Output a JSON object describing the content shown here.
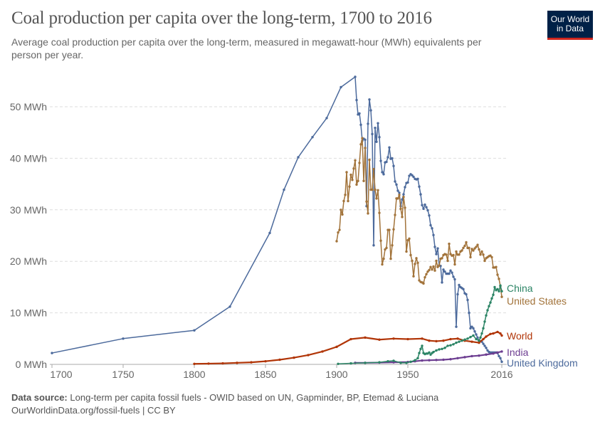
{
  "header": {
    "title": "Coal production per capita over the long-term, 1700 to 2016",
    "subtitle": "Average coal production per capita over the long-term, measured in megawatt-hour (MWh) equivalents per person per year.",
    "logo": [
      "Our World",
      "in Data"
    ]
  },
  "footer": {
    "source_label": "Data source:",
    "source_text": "Long-term per capita fossil fuels - OWID based on UN, Gapminder, BP, Etemad & Luciana",
    "url_line": "OurWorldinData.org/fossil-fuels | CC BY"
  },
  "colors": {
    "brand": "#002147",
    "brand_accent": "#ce261e"
  },
  "chart_data": {
    "type": "line",
    "title": "Coal production per capita over the long-term, 1700 to 2016",
    "xlim": [
      1700,
      2016
    ],
    "ylim": [
      0,
      55
    ],
    "x_ticks": [
      "1700",
      "1750",
      "1800",
      "1850",
      "1900",
      "1950",
      "2016"
    ],
    "x_tick_values": [
      1700,
      1750,
      1800,
      1850,
      1900,
      1950,
      2016
    ],
    "y_ticks": [
      "0 MWh",
      "10 MWh",
      "20 MWh",
      "30 MWh",
      "40 MWh",
      "50 MWh"
    ],
    "y_tick_values": [
      0,
      10,
      20,
      30,
      40,
      50
    ],
    "grid": "horizontal dashed",
    "legend": "inline labels at right end of lines",
    "series": [
      {
        "name": "United Kingdom",
        "color": "#4c6a9c",
        "points": [
          [
            1700,
            2.2
          ],
          [
            1750,
            5.0
          ],
          [
            1800,
            6.6
          ],
          [
            1825,
            11.2
          ],
          [
            1853,
            25.5
          ],
          [
            1863,
            33.9
          ],
          [
            1873,
            40.2
          ],
          [
            1883,
            44.1
          ],
          [
            1893,
            47.8
          ],
          [
            1903,
            53.8
          ],
          [
            1913,
            55.8
          ],
          [
            1914,
            51.3
          ],
          [
            1915,
            48.5
          ],
          [
            1916,
            48.7
          ],
          [
            1917,
            46.5
          ],
          [
            1918,
            43.4
          ],
          [
            1919,
            43.8
          ],
          [
            1920,
            43.6
          ],
          [
            1921,
            30.7
          ],
          [
            1922,
            46.7
          ],
          [
            1923,
            51.4
          ],
          [
            1924,
            49.3
          ],
          [
            1925,
            44.7
          ],
          [
            1926,
            23.1
          ],
          [
            1927,
            45.9
          ],
          [
            1928,
            43.2
          ],
          [
            1929,
            46.8
          ],
          [
            1930,
            44.1
          ],
          [
            1931,
            39.5
          ],
          [
            1932,
            37.3
          ],
          [
            1933,
            36.9
          ],
          [
            1934,
            39.2
          ],
          [
            1935,
            39.3
          ],
          [
            1936,
            40.2
          ],
          [
            1937,
            42.1
          ],
          [
            1938,
            39.9
          ],
          [
            1939,
            40.0
          ],
          [
            1940,
            38.5
          ],
          [
            1941,
            35.5
          ],
          [
            1942,
            34.9
          ],
          [
            1943,
            33.7
          ],
          [
            1944,
            33.3
          ],
          [
            1945,
            30.7
          ],
          [
            1946,
            32.0
          ],
          [
            1947,
            33.0
          ],
          [
            1948,
            34.4
          ],
          [
            1949,
            35.2
          ],
          [
            1950,
            35.3
          ],
          [
            1951,
            36.6
          ],
          [
            1952,
            36.9
          ],
          [
            1953,
            36.7
          ],
          [
            1954,
            36.4
          ],
          [
            1955,
            36.0
          ],
          [
            1956,
            35.9
          ],
          [
            1957,
            36.0
          ],
          [
            1958,
            34.5
          ],
          [
            1959,
            33.0
          ],
          [
            1960,
            30.9
          ],
          [
            1961,
            30.2
          ],
          [
            1962,
            31.0
          ],
          [
            1963,
            30.5
          ],
          [
            1964,
            29.9
          ],
          [
            1965,
            28.9
          ],
          [
            1966,
            27.0
          ],
          [
            1967,
            26.4
          ],
          [
            1968,
            25.1
          ],
          [
            1969,
            22.8
          ],
          [
            1970,
            21.4
          ],
          [
            1971,
            22.5
          ],
          [
            1972,
            19.2
          ],
          [
            1973,
            19.1
          ],
          [
            1974,
            15.9
          ],
          [
            1975,
            18.4
          ],
          [
            1976,
            18.0
          ],
          [
            1977,
            17.6
          ],
          [
            1978,
            17.6
          ],
          [
            1979,
            17.6
          ],
          [
            1980,
            18.2
          ],
          [
            1981,
            17.8
          ],
          [
            1982,
            17.0
          ],
          [
            1983,
            16.5
          ],
          [
            1984,
            7.3
          ],
          [
            1985,
            13.6
          ],
          [
            1986,
            15.4
          ],
          [
            1987,
            15.0
          ],
          [
            1988,
            14.8
          ],
          [
            1989,
            14.6
          ],
          [
            1990,
            13.8
          ],
          [
            1991,
            13.6
          ],
          [
            1992,
            12.5
          ],
          [
            1993,
            10.0
          ],
          [
            1994,
            7.0
          ],
          [
            1995,
            7.3
          ],
          [
            1996,
            7.0
          ],
          [
            1997,
            6.4
          ],
          [
            1998,
            5.8
          ],
          [
            1999,
            5.2
          ],
          [
            2000,
            4.6
          ],
          [
            2001,
            4.5
          ],
          [
            2002,
            4.4
          ],
          [
            2003,
            4.0
          ],
          [
            2004,
            3.6
          ],
          [
            2005,
            3.2
          ],
          [
            2006,
            2.7
          ],
          [
            2007,
            2.4
          ],
          [
            2008,
            2.3
          ],
          [
            2009,
            2.3
          ],
          [
            2010,
            2.3
          ],
          [
            2011,
            2.3
          ],
          [
            2012,
            2.3
          ],
          [
            2013,
            2.2
          ],
          [
            2014,
            1.6
          ],
          [
            2015,
            1.2
          ],
          [
            2016,
            0.5
          ]
        ]
      },
      {
        "name": "United States",
        "color": "#a2733a",
        "start_year": 1900,
        "values": [
          23.9,
          25.6,
          26.1,
          30.0,
          29.1,
          31.7,
          32.9,
          37.3,
          31.7,
          34.5,
          36.8,
          35.8,
          38.0,
          39.6,
          34.9,
          35.6,
          39.1,
          42.7,
          43.9,
          35.6,
          42.0,
          31.6,
          29.3,
          39.7,
          33.9,
          33.9,
          37.9,
          33.9,
          32.2,
          33.8,
          29.4,
          24.0,
          19.4,
          20.5,
          22.3,
          22.6,
          26.1,
          26.1,
          20.5,
          23.1,
          26.2,
          29.0,
          32.2,
          32.2,
          32.9,
          30.2,
          28.6,
          32.5,
          30.4,
          21.9,
          24.1,
          24.4,
          21.2,
          20.1,
          17.1,
          19.5,
          20.6,
          19.7,
          16.3,
          16.0,
          15.9,
          15.7,
          16.9,
          17.5,
          18.0,
          18.3,
          18.9,
          18.4,
          19.0,
          18.2,
          20.1,
          18.9,
          19.2,
          20.5,
          20.6,
          21.2,
          21.4,
          21.3,
          20.1,
          23.4,
          21.4,
          21.1,
          21.2,
          19.4,
          21.9,
          21.3,
          21.3,
          21.9,
          22.1,
          22.6,
          23.0,
          23.7,
          22.6,
          22.6,
          20.8,
          22.4,
          22.1,
          22.5,
          22.8,
          23.2,
          22.3,
          21.3,
          21.9,
          21.3,
          20.1,
          20.6,
          20.8,
          21.0,
          21.1,
          20.8,
          18.8,
          18.8,
          18.9,
          17.4,
          16.6,
          15.2,
          13.1
        ]
      },
      {
        "name": "China",
        "color": "#2b8465",
        "points": [
          [
            1901,
            0.1
          ],
          [
            1910,
            0.2
          ],
          [
            1920,
            0.3
          ],
          [
            1930,
            0.4
          ],
          [
            1936,
            0.6
          ],
          [
            1940,
            0.7
          ],
          [
            1945,
            0.3
          ],
          [
            1949,
            0.3
          ],
          [
            1952,
            0.5
          ],
          [
            1955,
            0.8
          ],
          [
            1957,
            1.2
          ],
          [
            1958,
            2.2
          ],
          [
            1959,
            3.0
          ],
          [
            1960,
            3.6
          ],
          [
            1961,
            2.2
          ],
          [
            1962,
            2.0
          ],
          [
            1963,
            2.1
          ],
          [
            1964,
            2.1
          ],
          [
            1965,
            2.3
          ],
          [
            1966,
            1.9
          ],
          [
            1967,
            2.2
          ],
          [
            1968,
            2.4
          ],
          [
            1970,
            2.7
          ],
          [
            1972,
            2.9
          ],
          [
            1974,
            3.0
          ],
          [
            1976,
            3.2
          ],
          [
            1978,
            3.6
          ],
          [
            1980,
            3.7
          ],
          [
            1982,
            3.9
          ],
          [
            1984,
            4.2
          ],
          [
            1986,
            4.4
          ],
          [
            1988,
            4.6
          ],
          [
            1990,
            4.8
          ],
          [
            1992,
            5.0
          ],
          [
            1994,
            5.3
          ],
          [
            1996,
            5.6
          ],
          [
            1998,
            4.9
          ],
          [
            2000,
            4.6
          ],
          [
            2001,
            5.2
          ],
          [
            2002,
            6.0
          ],
          [
            2003,
            7.0
          ],
          [
            2004,
            8.3
          ],
          [
            2005,
            9.5
          ],
          [
            2006,
            10.5
          ],
          [
            2007,
            11.3
          ],
          [
            2008,
            12.0
          ],
          [
            2009,
            12.8
          ],
          [
            2010,
            13.5
          ],
          [
            2011,
            15.0
          ],
          [
            2012,
            14.4
          ],
          [
            2013,
            14.6
          ],
          [
            2014,
            14.2
          ],
          [
            2015,
            15.3
          ],
          [
            2016,
            14.2
          ]
        ]
      },
      {
        "name": "World",
        "color": "#b13507",
        "points": [
          [
            1800,
            0.1
          ],
          [
            1810,
            0.15
          ],
          [
            1820,
            0.2
          ],
          [
            1830,
            0.3
          ],
          [
            1840,
            0.4
          ],
          [
            1850,
            0.6
          ],
          [
            1860,
            0.9
          ],
          [
            1870,
            1.3
          ],
          [
            1880,
            1.8
          ],
          [
            1890,
            2.5
          ],
          [
            1900,
            3.4
          ],
          [
            1910,
            4.9
          ],
          [
            1920,
            5.2
          ],
          [
            1930,
            4.8
          ],
          [
            1940,
            5.0
          ],
          [
            1950,
            4.9
          ],
          [
            1960,
            5.0
          ],
          [
            1965,
            4.6
          ],
          [
            1970,
            4.5
          ],
          [
            1975,
            4.6
          ],
          [
            1980,
            4.9
          ],
          [
            1985,
            5.0
          ],
          [
            1990,
            4.6
          ],
          [
            1995,
            4.4
          ],
          [
            2000,
            4.2
          ],
          [
            2003,
            4.9
          ],
          [
            2005,
            5.4
          ],
          [
            2008,
            5.9
          ],
          [
            2010,
            6.0
          ],
          [
            2013,
            6.3
          ],
          [
            2015,
            6.0
          ],
          [
            2016,
            5.6
          ]
        ]
      },
      {
        "name": "India",
        "color": "#6d3e91",
        "points": [
          [
            1913,
            0.3
          ],
          [
            1920,
            0.3
          ],
          [
            1930,
            0.35
          ],
          [
            1940,
            0.4
          ],
          [
            1950,
            0.45
          ],
          [
            1955,
            0.6
          ],
          [
            1960,
            0.75
          ],
          [
            1965,
            0.8
          ],
          [
            1970,
            0.85
          ],
          [
            1975,
            0.9
          ],
          [
            1980,
            1.0
          ],
          [
            1985,
            1.2
          ],
          [
            1990,
            1.4
          ],
          [
            1995,
            1.6
          ],
          [
            2000,
            1.7
          ],
          [
            2005,
            1.9
          ],
          [
            2010,
            2.1
          ],
          [
            2013,
            2.3
          ],
          [
            2016,
            2.5
          ]
        ]
      }
    ]
  }
}
